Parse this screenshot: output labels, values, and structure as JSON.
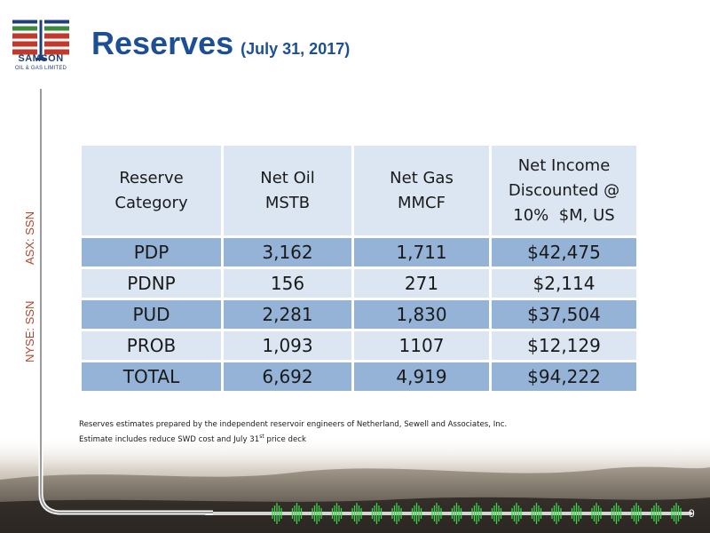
{
  "logo": {
    "name": "SAMSON",
    "subtitle": "OIL & GAS LIMITED"
  },
  "title": {
    "main": "Reserves",
    "date": "(July 31, 2017)"
  },
  "tickers": {
    "asx": "ASX: SSN",
    "nyse": "NYSE: SSN"
  },
  "table": {
    "headers": [
      [
        "Reserve",
        "Category"
      ],
      [
        "Net Oil",
        "MSTB"
      ],
      [
        "Net Gas",
        "MMCF"
      ],
      [
        "Net Income",
        "Discounted @",
        "10%  $M, US"
      ]
    ],
    "rows": [
      [
        "PDP",
        "3,162",
        "1,711",
        "$42,475"
      ],
      [
        "PDNP",
        "156",
        "271",
        "$2,114"
      ],
      [
        "PUD",
        "2,281",
        "1,830",
        "$37,504"
      ],
      [
        "PROB",
        "1,093",
        "1107",
        "$12,129"
      ],
      [
        "TOTAL",
        "6,692",
        "4,919",
        "$94,222"
      ]
    ]
  },
  "notes": {
    "line1": "Reserves estimates prepared by the independent reservoir engineers of Netherland, Sewell and Associates, Inc.",
    "line2_pre": "Estimate includes reduce SWD cost and July 31",
    "line2_sup": "st",
    "line2_post": " price deck"
  },
  "page_number": "9",
  "colors": {
    "title_blue": "#1d4f95",
    "ticker_red": "#b5462b",
    "header_fill": "#dce6f2",
    "row_dark": "#95b3d7",
    "row_light": "#dce6f2",
    "logo_red": "#c0392b",
    "logo_green": "#3a8a3a",
    "logo_blue": "#1f3f77"
  }
}
